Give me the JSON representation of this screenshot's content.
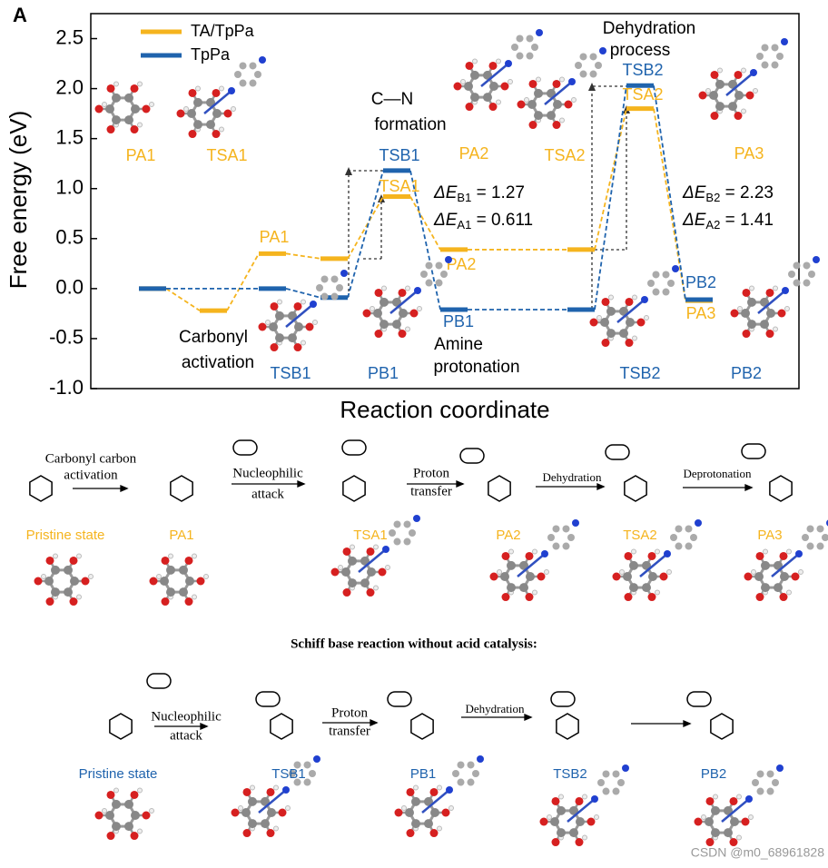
{
  "panel": "A",
  "chart_data": {
    "type": "energy-levels",
    "ylabel": "Free energy (eV)",
    "xlabel": "Reaction coordinate",
    "categories": [
      null,
      null,
      null,
      null,
      null,
      null,
      null,
      null,
      null
    ],
    "ylim": [
      -1,
      2.75
    ],
    "yticks": [
      {
        "value": -1,
        "label": "-1.0"
      },
      -0.5,
      {
        "value": 0,
        "label": "0.0"
      },
      0.5,
      {
        "value": 1,
        "label": "1.0"
      },
      1.5,
      {
        "value": 2,
        "label": "2.0"
      },
      2.5
    ],
    "series": [
      {
        "name": "TA/TpPa",
        "color": "#f5b41e",
        "values": [
          0,
          -0.22,
          0.35,
          0.3,
          0.92,
          0.39,
          0.39,
          1.8,
          -0.12
        ]
      },
      {
        "name": "TpPa",
        "color": "#1f63ad",
        "values": [
          0,
          null,
          0,
          -0.09,
          1.18,
          -0.21,
          -0.21,
          2.03,
          -0.11
        ]
      }
    ],
    "legend": "upper left",
    "annotations": [
      "PA1",
      "TSA1",
      "PA2",
      "TSA2",
      "PA3",
      "PA1",
      "TSA1",
      "TSB1",
      "PA2",
      "PB1",
      "TSB2",
      "TSA2",
      "PB2",
      "PA3",
      "TSB1",
      "PB1",
      "TSB2",
      "PB2"
    ],
    "notes": [
      "C—N",
      "formation",
      "Dehydration",
      "process",
      "Carbonyl",
      "activation",
      "Amine",
      "protonation"
    ],
    "energies": [
      {
        "symbol": "ΔE",
        "sub": "B1",
        "rest": " = 1.27"
      },
      {
        "symbol": "ΔE",
        "sub": "A1",
        "rest": " = 0.611"
      },
      {
        "symbol": "ΔE",
        "sub": "B2",
        "rest": " = 2.23"
      },
      {
        "symbol": "ΔE",
        "sub": "A2",
        "rest": " = 1.41"
      }
    ]
  },
  "scheme_acid": {
    "steps": [
      "Carbonyl carbon",
      "activation",
      "Nucleophilic",
      "attack",
      "Proton",
      "transfer",
      "Dehydration",
      "Deprotonation"
    ],
    "states": [
      "Pristine state",
      "PA1",
      "TSA1",
      "PA2",
      "TSA2",
      "PA3"
    ]
  },
  "scheme_title": "Schiff base reaction without acid catalysis:",
  "scheme_plain": {
    "steps": [
      "Nucleophilic",
      "attack",
      "Proton",
      "transfer",
      "Dehydration"
    ],
    "states": [
      "Pristine state",
      "TSB1",
      "PB1",
      "TSB2",
      "PB2"
    ]
  },
  "watermark": "CSDN @m0_68961828"
}
